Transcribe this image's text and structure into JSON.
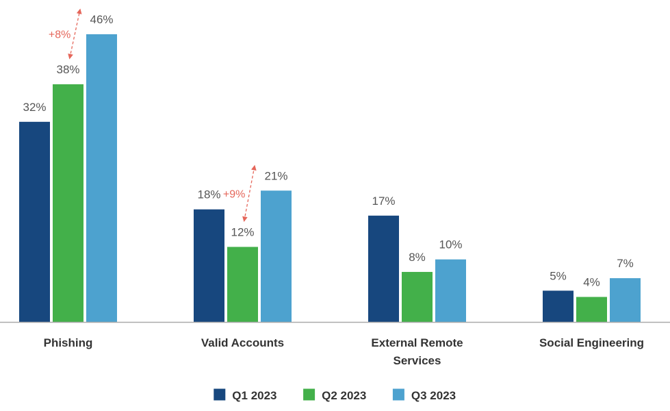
{
  "chart_data": {
    "type": "bar",
    "categories": [
      "Phishing",
      "Valid Accounts",
      "External Remote Services",
      "Social Engineering"
    ],
    "series": [
      {
        "name": "Q1 2023",
        "values": [
          32,
          18,
          17,
          5
        ],
        "color": "#17477e"
      },
      {
        "name": "Q2 2023",
        "values": [
          38,
          12,
          8,
          4
        ],
        "color": "#43b04a"
      },
      {
        "name": "Q3 2023",
        "values": [
          46,
          21,
          10,
          7
        ],
        "color": "#4da2cf"
      }
    ],
    "value_suffix": "%",
    "ylim": [
      0,
      50
    ],
    "grid": false,
    "legend_position": "bottom",
    "annotations": [
      {
        "category": "Phishing",
        "text": "+8%",
        "from_series": "Q2 2023",
        "to_series": "Q3 2023"
      },
      {
        "category": "Valid Accounts",
        "text": "+9%",
        "from_series": "Q2 2023",
        "to_series": "Q3 2023"
      }
    ],
    "annotation_color": "#e5665a",
    "axis_color": "#aaaaaa"
  }
}
